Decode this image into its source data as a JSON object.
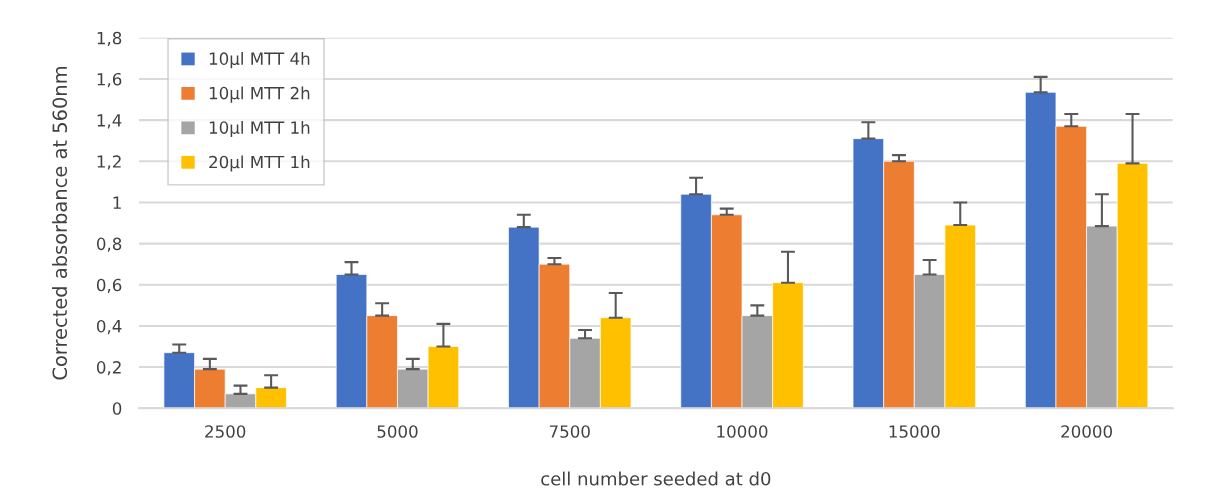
{
  "chart_data": {
    "type": "bar",
    "xlabel": "cell number seeded at d0",
    "ylabel": "Corrected absorbance at 560nm",
    "categories": [
      "2500",
      "5000",
      "7500",
      "10000",
      "15000",
      "20000"
    ],
    "series": [
      {
        "name": "10µl MTT 4h",
        "color": "#4472c4",
        "values": [
          0.27,
          0.65,
          0.88,
          1.04,
          1.31,
          1.535
        ],
        "errors": [
          [
            0.27,
            0.31
          ],
          [
            0.65,
            0.71
          ],
          [
            0.88,
            0.94
          ],
          [
            1.04,
            1.12
          ],
          [
            1.31,
            1.39
          ],
          [
            1.535,
            1.61
          ]
        ]
      },
      {
        "name": "10µl MTT 2h",
        "color": "#ed7d31",
        "values": [
          0.19,
          0.45,
          0.7,
          0.94,
          1.2,
          1.37
        ],
        "errors": [
          [
            0.19,
            0.24
          ],
          [
            0.45,
            0.51
          ],
          [
            0.7,
            0.73
          ],
          [
            0.94,
            0.97
          ],
          [
            1.2,
            1.23
          ],
          [
            1.37,
            1.43
          ]
        ]
      },
      {
        "name": "10µl MTT 1h",
        "color": "#a5a5a5",
        "values": [
          0.07,
          0.19,
          0.34,
          0.45,
          0.65,
          0.885
        ],
        "errors": [
          [
            0.07,
            0.11
          ],
          [
            0.19,
            0.24
          ],
          [
            0.34,
            0.38
          ],
          [
            0.45,
            0.5
          ],
          [
            0.65,
            0.72
          ],
          [
            0.885,
            1.04
          ]
        ]
      },
      {
        "name": "20µl MTT 1h",
        "color": "#ffc000",
        "values": [
          0.1,
          0.3,
          0.44,
          0.61,
          0.89,
          1.19
        ],
        "errors": [
          [
            0.1,
            0.16
          ],
          [
            0.3,
            0.41
          ],
          [
            0.44,
            0.56
          ],
          [
            0.61,
            0.76
          ],
          [
            0.89,
            1.0
          ],
          [
            1.19,
            1.43
          ]
        ]
      }
    ],
    "ylim": [
      0,
      1.8
    ],
    "yticks": [
      0,
      {
        "value": 0.2,
        "label": "0,2"
      },
      {
        "value": 0.4,
        "label": "0,4"
      },
      {
        "value": 0.6,
        "label": "0,6"
      },
      {
        "value": 0.8,
        "label": "0,8"
      },
      1,
      {
        "value": 1.2,
        "label": "1,2"
      },
      {
        "value": 1.4,
        "label": "1,4"
      },
      {
        "value": 1.6,
        "label": "1,6"
      },
      {
        "value": 1.8,
        "label": "1,8"
      }
    ],
    "grid": "y",
    "legend": "top left"
  }
}
